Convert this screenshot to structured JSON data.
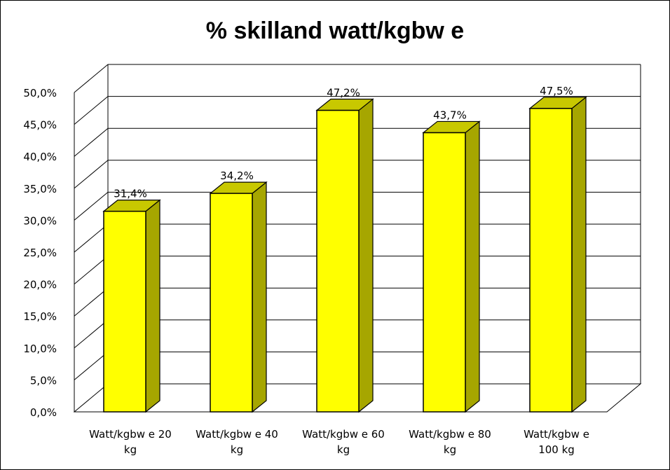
{
  "chart_data": {
    "type": "bar",
    "title": "% skilland watt/kgbw e",
    "categories": [
      [
        "Watt/kgbw e 20",
        "kg"
      ],
      [
        "Watt/kgbw e 40",
        "kg"
      ],
      [
        "Watt/kgbw e 60",
        "kg"
      ],
      [
        "Watt/kgbw e 80",
        "kg"
      ],
      [
        "Watt/kgbw e",
        "100 kg"
      ]
    ],
    "values": [
      31.4,
      34.2,
      47.2,
      43.7,
      47.5
    ],
    "data_labels": [
      "31,4%",
      "34,2%",
      "47,2%",
      "43,7%",
      "47,5%"
    ],
    "ylim": [
      0,
      50
    ],
    "yticks": [
      0,
      5,
      10,
      15,
      20,
      25,
      30,
      35,
      40,
      45,
      50
    ],
    "ytick_labels": [
      "0,0%",
      "5,0%",
      "10,0%",
      "15,0%",
      "20,0%",
      "25,0%",
      "30,0%",
      "35,0%",
      "40,0%",
      "45,0%",
      "50,0%"
    ],
    "xlabel": "",
    "ylabel": "",
    "grid": true,
    "legend": "none",
    "style": "3d",
    "colors": {
      "bar_front": "#ffff00",
      "bar_side": "#a6a600",
      "bar_top": "#c8c800",
      "gridline": "#000000"
    }
  }
}
